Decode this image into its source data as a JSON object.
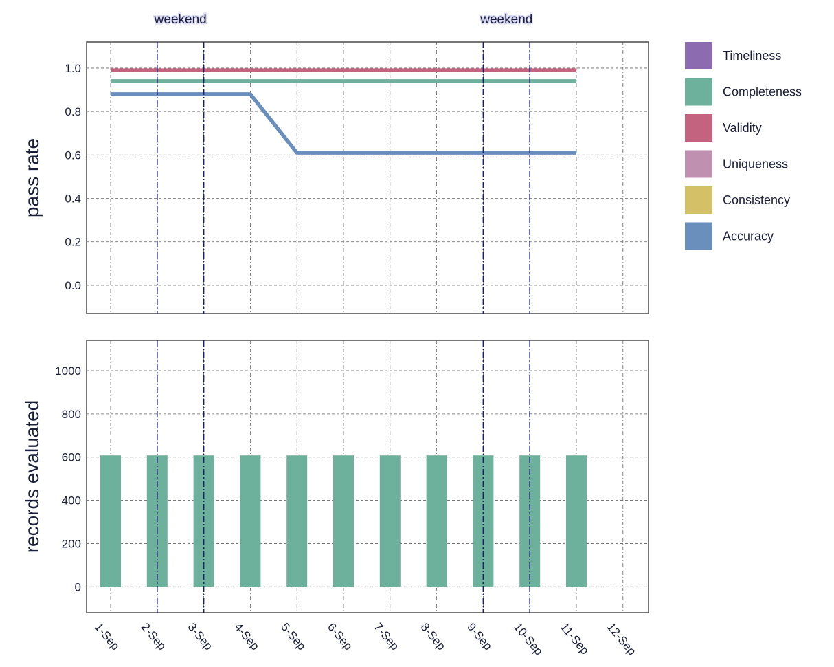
{
  "chart_data": [
    {
      "type": "line",
      "ylabel": "pass rate",
      "xlabel": "",
      "ylim": [
        -0.13,
        1.12
      ],
      "yticks": [
        0.0,
        0.2,
        0.4,
        0.6,
        0.8,
        1.0
      ],
      "ytick_labels": [
        "0.0",
        "0.2",
        "0.4",
        "0.6",
        "0.8",
        "1.0"
      ],
      "grid": true,
      "legend_position": "right",
      "series": [
        {
          "name": "Timeliness",
          "color": "#8c6bb1",
          "values": []
        },
        {
          "name": "Completeness",
          "color": "#6db19c",
          "values": [
            0.94,
            0.94,
            0.94,
            0.94,
            0.94,
            0.94,
            0.94,
            0.94,
            0.94,
            0.94,
            0.94
          ]
        },
        {
          "name": "Validity",
          "color": "#c4637f",
          "values": [
            0.99,
            0.99,
            0.99,
            0.99,
            0.99,
            0.99,
            0.99,
            0.99,
            0.99,
            0.99,
            0.99
          ]
        },
        {
          "name": "Uniqueness",
          "color": "#c090b0",
          "values": []
        },
        {
          "name": "Consistency",
          "color": "#d4c066",
          "values": []
        },
        {
          "name": "Accuracy",
          "color": "#6b8fbd",
          "values": [
            0.88,
            0.88,
            0.88,
            0.88,
            0.61,
            0.61,
            0.61,
            0.61,
            0.61,
            0.61,
            0.61
          ]
        }
      ]
    },
    {
      "type": "bar",
      "ylabel": "records evaluated",
      "xlabel": "",
      "ylim": [
        -120,
        1140
      ],
      "yticks": [
        0,
        200,
        400,
        600,
        800,
        1000
      ],
      "ytick_labels": [
        "0",
        "200",
        "400",
        "600",
        "800",
        "1000"
      ],
      "grid": true,
      "bar_color": "#6db19c",
      "categories": [
        "1-Sep",
        "2-Sep",
        "3-Sep",
        "4-Sep",
        "5-Sep",
        "6-Sep",
        "7-Sep",
        "8-Sep",
        "9-Sep",
        "10-Sep",
        "11-Sep"
      ],
      "values": [
        608,
        608,
        608,
        608,
        608,
        608,
        608,
        608,
        608,
        608,
        608
      ]
    }
  ],
  "x_categories": [
    "1-Sep",
    "2-Sep",
    "3-Sep",
    "4-Sep",
    "5-Sep",
    "6-Sep",
    "7-Sep",
    "8-Sep",
    "9-Sep",
    "10-Sep",
    "11-Sep",
    "12-Sep"
  ],
  "weekends": [
    {
      "label": "weekend",
      "days": [
        "2-Sep",
        "3-Sep"
      ]
    },
    {
      "label": "weekend",
      "days": [
        "9-Sep",
        "10-Sep"
      ]
    }
  ],
  "colors": {
    "weekend_line": "#1a1f6b",
    "grid": "#666666",
    "frame": "#555555"
  }
}
